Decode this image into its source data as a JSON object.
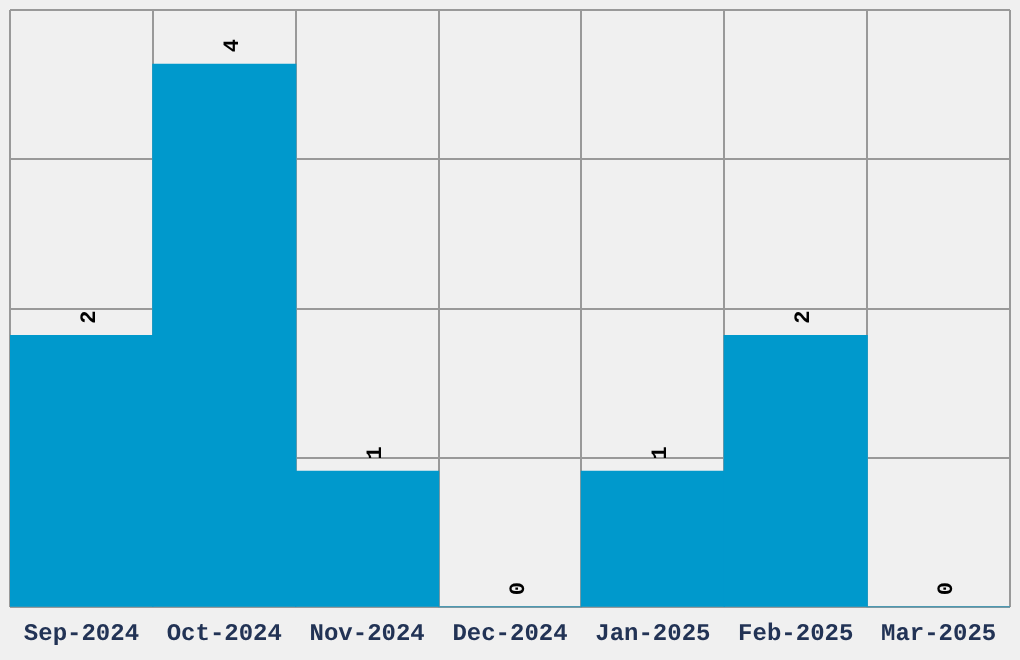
{
  "chart_data": {
    "type": "bar",
    "categories": [
      "Sep-2024",
      "Oct-2024",
      "Nov-2024",
      "Dec-2024",
      "Jan-2025",
      "Feb-2025",
      "Mar-2025"
    ],
    "values": [
      2,
      4,
      1,
      0,
      1,
      2,
      0
    ],
    "color": "#0099cc",
    "data_labels": true,
    "ylim": [
      0,
      4.4
    ],
    "yticks": [
      {
        "value": 0,
        "label": null
      },
      {
        "value": 1.1,
        "label": null
      },
      {
        "value": 2.2,
        "label": null
      },
      {
        "value": 3.3,
        "label": null
      },
      {
        "value": 4.4,
        "label": null
      }
    ],
    "tick_labels": "x",
    "grid": true,
    "legend": false
  }
}
